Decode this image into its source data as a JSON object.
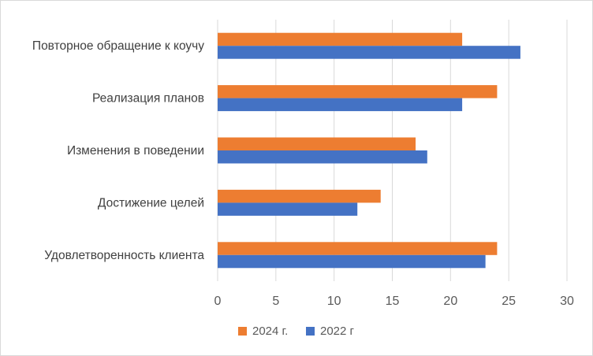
{
  "chart_data": {
    "type": "bar",
    "orientation": "horizontal",
    "categories": [
      "Повторное обращение к коучу",
      "Реализация планов",
      "Изменения в поведении",
      "Достижение целей",
      "Удовлетворенность клиента"
    ],
    "series": [
      {
        "name": "2024 г.",
        "color": "#ED7D31",
        "values": [
          21,
          24,
          17,
          14,
          24
        ]
      },
      {
        "name": "2022 г",
        "color": "#4472C4",
        "values": [
          26,
          21,
          18,
          12,
          23
        ]
      }
    ],
    "xlim": [
      0,
      30
    ],
    "x_ticks": [
      "0",
      "5",
      "10",
      "15",
      "20",
      "25",
      "30"
    ],
    "grid": "vertical",
    "legend_position": "bottom"
  }
}
